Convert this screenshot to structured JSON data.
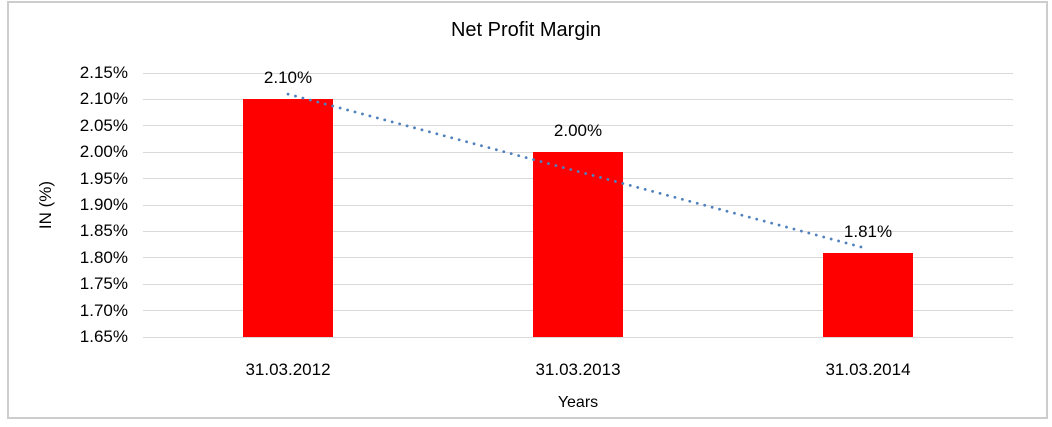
{
  "chart_data": {
    "type": "bar",
    "title": "Net Profit Margin",
    "xlabel": "Years",
    "ylabel": "IN (%)",
    "categories": [
      "31.03.2012",
      "31.03.2013",
      "31.03.2014"
    ],
    "values": [
      2.1,
      2.0,
      1.81
    ],
    "data_labels": [
      "2.10%",
      "2.00%",
      "1.81%"
    ],
    "ylim": [
      1.65,
      2.15
    ],
    "ytick_step": 0.05,
    "ytick_labels": [
      "2.15%",
      "2.10%",
      "2.05%",
      "2.00%",
      "1.95%",
      "1.90%",
      "1.85%",
      "1.80%",
      "1.75%",
      "1.70%",
      "1.65%"
    ],
    "grid": true,
    "legend": "none",
    "trendline": {
      "type": "linear",
      "style": "dotted",
      "start_value": 2.11,
      "end_value": 1.82
    },
    "colors": {
      "bar": "#ff0000",
      "trendline": "#4f81bd",
      "gridline": "#d9d9d9",
      "frame_border": "#cdcdcd",
      "text": "#000000"
    }
  }
}
